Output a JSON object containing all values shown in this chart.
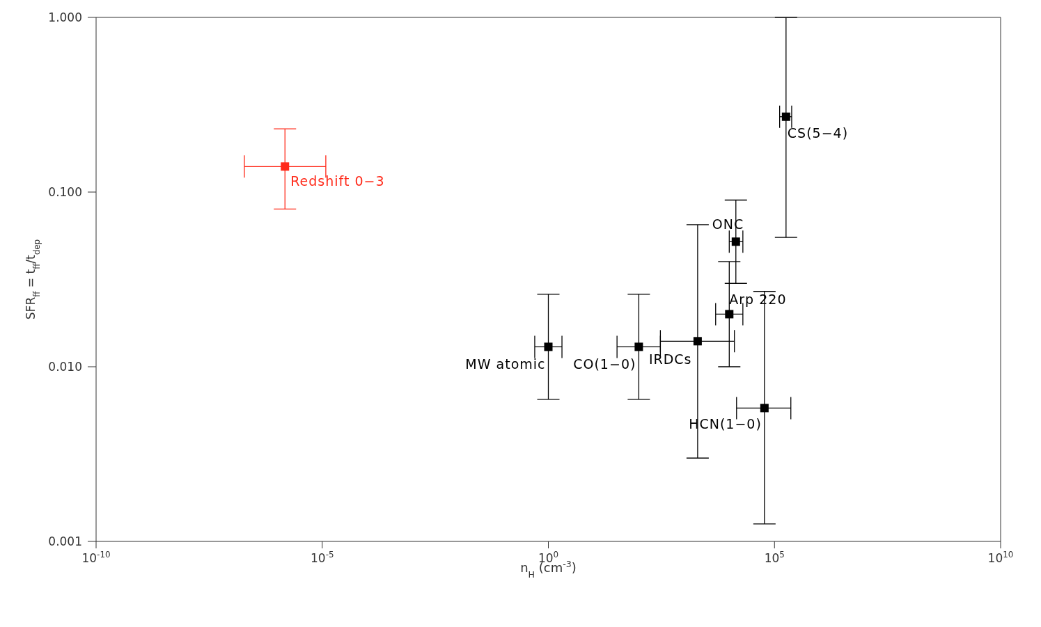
{
  "chart_data": {
    "type": "scatter",
    "xlabel": "n$_{H}$ (cm$^{-3}$)",
    "ylabel": "SFR$_{ff}$ = t$_{ff}$/t$_{dep}$",
    "log": "xy",
    "grid": false,
    "legend": false,
    "marker": "square",
    "xlim": [
      1e-10,
      10000000000.0
    ],
    "xticks": [
      {
        "value": 1e-10,
        "label": "10$^{-10}$"
      },
      {
        "value": 1e-05,
        "label": "10$^{-5}$"
      },
      {
        "value": 1,
        "label": "10$^{0}$"
      },
      {
        "value": 100000.0,
        "label": "10$^{5}$"
      },
      {
        "value": 10000000000.0,
        "label": "10$^{10}$"
      }
    ],
    "ylim": [
      0.001,
      1
    ],
    "yticks": [
      {
        "value": 0.001,
        "label": "0.001"
      },
      {
        "value": 0.01,
        "label": "0.010"
      },
      {
        "value": 0.1,
        "label": "0.100"
      },
      {
        "value": 1,
        "label": "1.000"
      }
    ],
    "series": [
      {
        "color": "#ff2a1a",
        "x": [
          1.5e-06
        ],
        "values": [
          0.14
        ],
        "errors": [
          [
            0.08,
            0.23
          ]
        ],
        "xerrors": [
          [
            1.9e-07,
            1.2e-05
          ]
        ]
      },
      {
        "color": "#000000",
        "x": [
          1,
          100,
          2000,
          14000,
          10000,
          60000,
          180000
        ],
        "values": [
          0.013,
          0.013,
          0.014,
          0.052,
          0.02,
          0.0058,
          0.27
        ],
        "errors": [
          [
            0.0065,
            0.026
          ],
          [
            0.0065,
            0.026
          ],
          [
            0.003,
            0.065
          ],
          [
            0.03,
            0.09
          ],
          [
            0.01,
            0.04
          ],
          [
            0.00126,
            0.027
          ],
          [
            0.055,
            1.0
          ]
        ],
        "xerrors": [
          [
            0.5,
            2
          ],
          [
            33,
            300
          ],
          [
            300,
            13000
          ],
          [
            10000,
            20000
          ],
          [
            5000,
            20000
          ],
          [
            14500,
            230000
          ],
          [
            130000,
            240000
          ]
        ]
      }
    ],
    "annotations": [
      {
        "text": "Redshift 0−3",
        "x": 1.5e-06,
        "y": 0.14
      },
      {
        "text": "MW atomic",
        "x": 1,
        "y": 0.013
      },
      {
        "text": "CO(1−0)",
        "x": 100,
        "y": 0.013
      },
      {
        "text": "IRDCs",
        "x": 2000,
        "y": 0.014
      },
      {
        "text": "ONC",
        "x": 14000,
        "y": 0.052
      },
      {
        "text": "Arp 220",
        "x": 10000,
        "y": 0.02
      },
      {
        "text": "HCN(1−0)",
        "x": 60000,
        "y": 0.0058
      },
      {
        "text": "CS(5−4)",
        "x": 180000,
        "y": 0.27
      }
    ]
  }
}
